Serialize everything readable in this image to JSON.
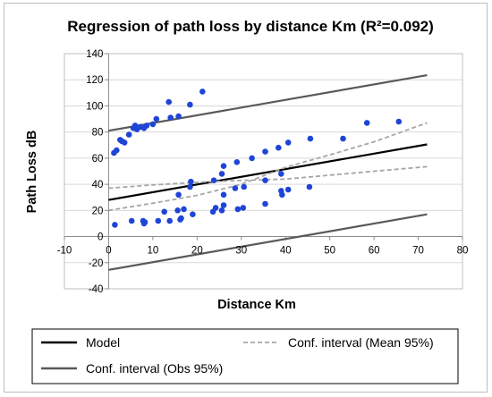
{
  "chart_data": {
    "type": "scatter",
    "title": "Regression of path loss by distance Km (R²=0.092)",
    "xlabel": "Distance Km",
    "ylabel": "Path Loss dB",
    "xlim": [
      -10,
      80
    ],
    "ylim": [
      -40,
      140
    ],
    "xticks": [
      -10,
      0,
      10,
      20,
      30,
      40,
      50,
      60,
      70,
      80
    ],
    "yticks": [
      -40,
      -20,
      0,
      20,
      40,
      60,
      80,
      100,
      120,
      140
    ],
    "grid": true,
    "legend_position": "bottom",
    "series": [
      {
        "name": "",
        "kind": "scatter",
        "color": "#1f45d6",
        "points": [
          [
            1.2,
            64
          ],
          [
            1.8,
            66
          ],
          [
            2.6,
            74
          ],
          [
            3.0,
            73
          ],
          [
            3.6,
            72
          ],
          [
            4.6,
            78
          ],
          [
            5.6,
            83
          ],
          [
            6.0,
            85
          ],
          [
            6.4,
            82
          ],
          [
            7.2,
            84
          ],
          [
            8.0,
            83
          ],
          [
            8.6,
            85
          ],
          [
            10.0,
            86
          ],
          [
            10.8,
            90
          ],
          [
            13.6,
            103
          ],
          [
            14.0,
            91
          ],
          [
            15.8,
            92
          ],
          [
            18.4,
            101
          ],
          [
            21.2,
            111
          ],
          [
            25.6,
            48
          ],
          [
            26.0,
            54
          ],
          [
            29.0,
            57
          ],
          [
            32.4,
            60
          ],
          [
            35.4,
            65
          ],
          [
            38.4,
            68
          ],
          [
            40.6,
            72
          ],
          [
            45.6,
            75
          ],
          [
            53.0,
            75
          ],
          [
            58.4,
            87
          ],
          [
            65.6,
            88
          ],
          [
            15.8,
            32
          ],
          [
            18.4,
            38
          ],
          [
            18.6,
            42
          ],
          [
            23.8,
            43
          ],
          [
            26.0,
            32
          ],
          [
            28.6,
            37
          ],
          [
            30.6,
            38
          ],
          [
            35.4,
            43
          ],
          [
            39.0,
            48
          ],
          [
            39.2,
            32
          ],
          [
            39.0,
            35
          ],
          [
            40.6,
            36
          ],
          [
            45.4,
            38
          ],
          [
            35.4,
            25
          ],
          [
            1.4,
            9
          ],
          [
            5.2,
            12
          ],
          [
            7.8,
            12
          ],
          [
            8.2,
            11
          ],
          [
            11.2,
            12
          ],
          [
            12.6,
            19
          ],
          [
            13.8,
            12
          ],
          [
            15.6,
            20
          ],
          [
            16.2,
            13
          ],
          [
            16.4,
            14
          ],
          [
            17.0,
            21
          ],
          [
            19.0,
            17
          ],
          [
            23.6,
            19
          ],
          [
            24.2,
            22
          ],
          [
            25.6,
            20
          ],
          [
            26.0,
            24
          ],
          [
            29.2,
            21
          ],
          [
            30.4,
            22
          ],
          [
            8.0,
            10
          ]
        ]
      },
      {
        "name": "Model",
        "kind": "line",
        "color": "#000000",
        "style": "solid",
        "points": [
          [
            0,
            28
          ],
          [
            72,
            70.5
          ]
        ]
      },
      {
        "name": "Conf. interval (Mean 95%)",
        "kind": "line",
        "color": "#a6a6a6",
        "style": "dashed",
        "points": [
          [
            0,
            20
          ],
          [
            10,
            25.5
          ],
          [
            20,
            31.5
          ],
          [
            30,
            40
          ],
          [
            40,
            53
          ],
          [
            50,
            62.5
          ],
          [
            60,
            72.5
          ],
          [
            72,
            87
          ]
        ]
      },
      {
        "name": "",
        "kind": "line",
        "color": "#a6a6a6",
        "style": "dashed",
        "points": [
          [
            0,
            37
          ],
          [
            10,
            39.5
          ],
          [
            20,
            41.5
          ],
          [
            30,
            43
          ],
          [
            40,
            44
          ],
          [
            50,
            47
          ],
          [
            60,
            50
          ],
          [
            72,
            53.5
          ]
        ]
      },
      {
        "name": "Conf. interval (Obs 95%)",
        "kind": "line",
        "color": "#595959",
        "style": "solid",
        "points": [
          [
            0,
            81
          ],
          [
            72,
            123.5
          ]
        ]
      },
      {
        "name": "",
        "kind": "line",
        "color": "#595959",
        "style": "solid",
        "points": [
          [
            0,
            -25.5
          ],
          [
            72,
            17
          ]
        ]
      }
    ]
  }
}
